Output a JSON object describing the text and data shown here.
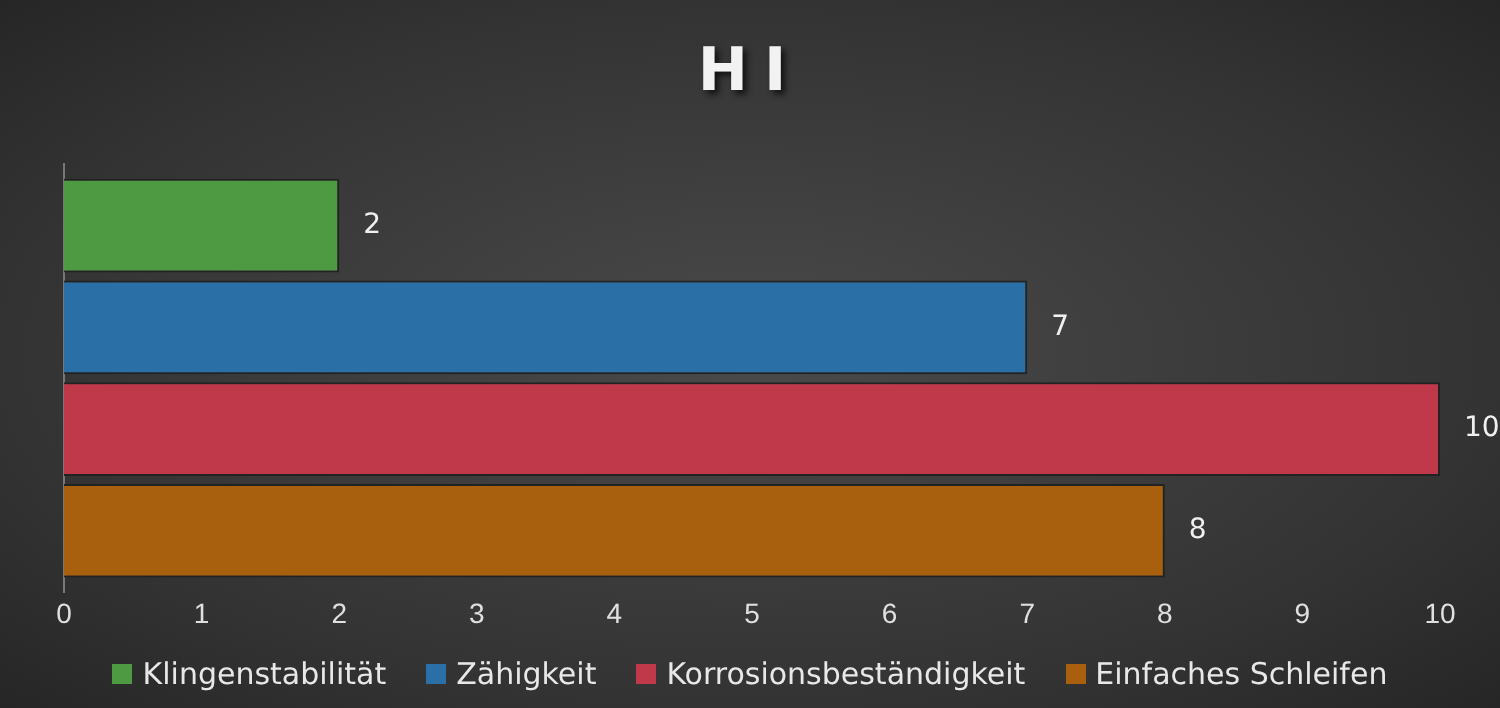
{
  "chart_data": {
    "type": "bar",
    "title": "HI",
    "orientation": "horizontal",
    "categories": [
      null
    ],
    "series": [
      {
        "name": "Klingenstabilität",
        "color": "#4e9a43",
        "values": [
          2
        ]
      },
      {
        "name": "Zähigkeit",
        "color": "#2a6fa6",
        "values": [
          7
        ]
      },
      {
        "name": "Korrosionsbeständigkeit",
        "color": "#c0394b",
        "values": [
          10
        ]
      },
      {
        "name": "Einfaches Schleifen",
        "color": "#a8600f",
        "values": [
          8
        ]
      }
    ],
    "xlim": [
      0,
      10
    ],
    "xticks": [
      0,
      1,
      2,
      3,
      4,
      5,
      6,
      7,
      8,
      9,
      10
    ],
    "grid": false,
    "legend": "bottom",
    "data_labels": true
  }
}
